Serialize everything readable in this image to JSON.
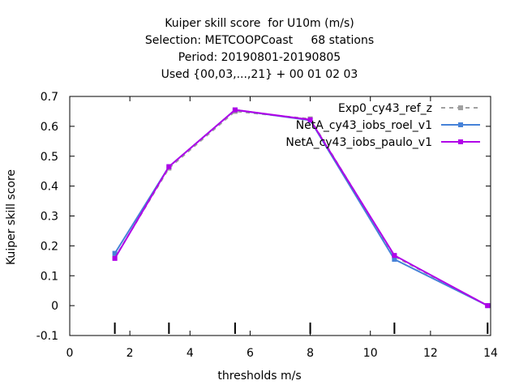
{
  "chart_data": {
    "type": "line",
    "title_lines": [
      "Kuiper skill score  for U10m (m/s)",
      "Selection: METCOOPCoast     68 stations",
      "Period: 20190801-20190805",
      "Used {00,03,...,21} + 00 01 02 03"
    ],
    "xlabel": "thresholds m/s",
    "ylabel": "Kuiper skill score",
    "xlim": [
      0,
      14
    ],
    "ylim": [
      -0.1,
      0.7
    ],
    "xticks": [
      0,
      2,
      4,
      6,
      8,
      10,
      12,
      14
    ],
    "yticks": [
      -0.1,
      0,
      0.1,
      0.2,
      0.3,
      0.4,
      0.5,
      0.6,
      0.7
    ],
    "threshold_markers": [
      1.5,
      3.3,
      5.5,
      8.0,
      10.8,
      13.9
    ],
    "legend_position": "top-right",
    "series": [
      {
        "name": "Exp0_cy43_ref_z",
        "color": "#a0a0a0",
        "dashed": true,
        "x": [
          1.5,
          3.3,
          5.5,
          8.0,
          10.8,
          13.9
        ],
        "y": [
          0.16,
          0.46,
          0.65,
          0.625,
          0.165,
          0.0
        ]
      },
      {
        "name": "NetA_cy43_iobs_roel_v1",
        "color": "#4682d8",
        "dashed": false,
        "x": [
          1.5,
          3.3,
          5.5,
          8.0,
          10.8,
          13.9
        ],
        "y": [
          0.175,
          0.465,
          0.655,
          0.62,
          0.155,
          0.0
        ]
      },
      {
        "name": "NetA_cy43_iobs_paulo_v1",
        "color": "#b000e8",
        "dashed": false,
        "x": [
          1.5,
          3.3,
          5.5,
          8.0,
          10.8,
          13.9
        ],
        "y": [
          0.158,
          0.465,
          0.655,
          0.622,
          0.168,
          0.0
        ]
      }
    ]
  }
}
